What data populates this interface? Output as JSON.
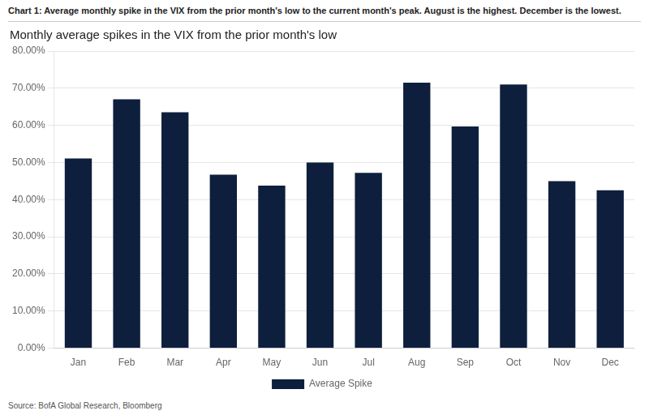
{
  "chart_data": {
    "type": "bar",
    "title": "Monthly average spikes in the VIX from the prior month's low",
    "annotations": [
      "Chart 1: Average monthly spike in the VIX from the prior month's low to the current month's peak. August is the highest. December is the lowest.",
      "Source: BofA Global Research, Bloomberg"
    ],
    "categories": [
      "Jan",
      "Feb",
      "Mar",
      "Apr",
      "May",
      "Jun",
      "Jul",
      "Aug",
      "Sep",
      "Oct",
      "Nov",
      "Dec"
    ],
    "series": [
      {
        "name": "Average Spike",
        "color": "#0d1f3c",
        "values": [
          0.511,
          0.67,
          0.635,
          0.467,
          0.438,
          0.5,
          0.472,
          0.715,
          0.597,
          0.71,
          0.45,
          0.425
        ]
      }
    ],
    "ylim": [
      0,
      0.8
    ],
    "yticks": [
      {
        "value": 0.0,
        "label": "0.00%"
      },
      {
        "value": 0.1,
        "label": "10.00%"
      },
      {
        "value": 0.2,
        "label": "20.00%"
      },
      {
        "value": 0.3,
        "label": "30.00%"
      },
      {
        "value": 0.4,
        "label": "40.00%"
      },
      {
        "value": 0.5,
        "label": "50.00%"
      },
      {
        "value": 0.6,
        "label": "60.00%"
      },
      {
        "value": 0.7,
        "label": "70.00%"
      },
      {
        "value": 0.8,
        "label": "80.00%"
      }
    ],
    "grid": true,
    "legend": "bottom"
  }
}
